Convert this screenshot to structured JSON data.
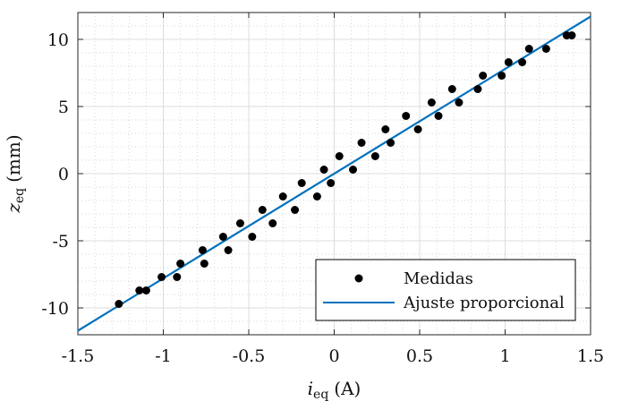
{
  "chart_data": {
    "type": "scatter",
    "xlabel_main": "i",
    "xlabel_sub": "eq",
    "xlabel_unit": "(A)",
    "ylabel_main": "z",
    "ylabel_sub": "eq",
    "ylabel_unit": "(mm)",
    "xlim": [
      -1.5,
      1.5
    ],
    "ylim": [
      -12,
      12
    ],
    "x_ticks": [
      -1.5,
      -1,
      -0.5,
      0,
      0.5,
      1,
      1.5
    ],
    "x_tick_labels": [
      "-1.5",
      "-1",
      "-0.5",
      "0",
      "0.5",
      "1",
      "1.5"
    ],
    "y_ticks": [
      -10,
      -5,
      0,
      5,
      10
    ],
    "y_tick_labels": [
      "-10",
      "-5",
      "0",
      "5",
      "10"
    ],
    "grid": true,
    "minor_grid": true,
    "legend_position": "bottom-right",
    "series": [
      {
        "name": "Medidas",
        "kind": "scatter",
        "color": "#000000",
        "points": [
          [
            -1.26,
            -9.7
          ],
          [
            -1.14,
            -8.7
          ],
          [
            -1.1,
            -8.7
          ],
          [
            -1.01,
            -7.7
          ],
          [
            -0.92,
            -7.7
          ],
          [
            -0.9,
            -6.7
          ],
          [
            -0.77,
            -5.7
          ],
          [
            -0.76,
            -6.7
          ],
          [
            -0.65,
            -4.7
          ],
          [
            -0.62,
            -5.7
          ],
          [
            -0.55,
            -3.7
          ],
          [
            -0.48,
            -4.7
          ],
          [
            -0.42,
            -2.7
          ],
          [
            -0.36,
            -3.7
          ],
          [
            -0.3,
            -1.7
          ],
          [
            -0.23,
            -2.7
          ],
          [
            -0.19,
            -0.7
          ],
          [
            -0.1,
            -1.7
          ],
          [
            -0.06,
            0.3
          ],
          [
            -0.02,
            -0.7
          ],
          [
            0.03,
            1.3
          ],
          [
            0.11,
            0.3
          ],
          [
            0.16,
            2.3
          ],
          [
            0.24,
            1.3
          ],
          [
            0.3,
            3.3
          ],
          [
            0.33,
            2.3
          ],
          [
            0.42,
            4.3
          ],
          [
            0.49,
            3.3
          ],
          [
            0.57,
            5.3
          ],
          [
            0.61,
            4.3
          ],
          [
            0.69,
            6.3
          ],
          [
            0.73,
            5.3
          ],
          [
            0.84,
            6.3
          ],
          [
            0.87,
            7.3
          ],
          [
            0.98,
            7.3
          ],
          [
            1.02,
            8.3
          ],
          [
            1.1,
            8.3
          ],
          [
            1.14,
            9.3
          ],
          [
            1.24,
            9.3
          ],
          [
            1.36,
            10.3
          ],
          [
            1.39,
            10.3
          ]
        ]
      },
      {
        "name": "Ajuste proporcional",
        "kind": "line",
        "color": "#0072BD",
        "slope": 7.8,
        "x_range": [
          -1.5,
          1.5
        ]
      }
    ]
  }
}
